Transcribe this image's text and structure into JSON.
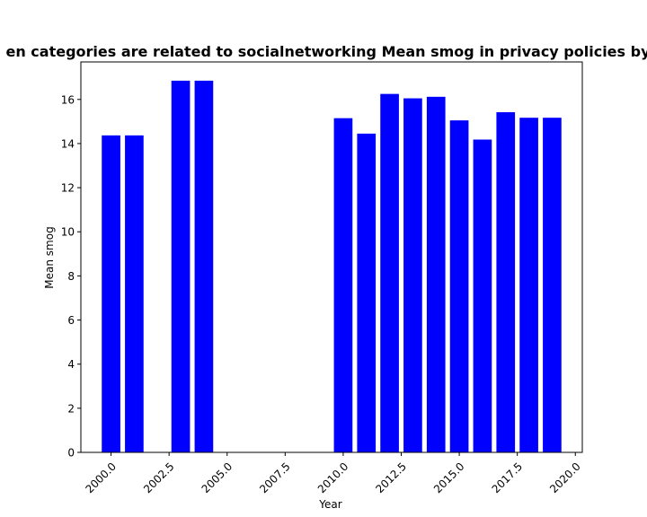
{
  "chart_data": {
    "type": "bar",
    "title": "en categories are related to socialnetworking Mean smog in privacy policies by",
    "xlabel": "Year",
    "ylabel": "Mean smog",
    "bar_color": "#0000ff",
    "xlim": [
      1998.7,
      2020.3
    ],
    "ylim": [
      0,
      17.7
    ],
    "xticks": [
      2000.0,
      2002.5,
      2005.0,
      2007.5,
      2010.0,
      2012.5,
      2015.0,
      2017.5,
      2020.0
    ],
    "xtick_labels": [
      "2000.0",
      "2002.5",
      "2005.0",
      "2007.5",
      "2010.0",
      "2012.5",
      "2015.0",
      "2017.5",
      "2020.0"
    ],
    "yticks": [
      0,
      2,
      4,
      6,
      8,
      10,
      12,
      14,
      16
    ],
    "ytick_labels": [
      "0",
      "2",
      "4",
      "6",
      "8",
      "10",
      "12",
      "14",
      "16"
    ],
    "x": [
      2000,
      2001,
      2003,
      2004,
      2010,
      2011,
      2012,
      2013,
      2014,
      2015,
      2016,
      2017,
      2018,
      2019
    ],
    "values": [
      14.37,
      14.37,
      16.85,
      16.85,
      15.15,
      14.45,
      16.25,
      16.05,
      16.12,
      15.05,
      14.18,
      15.42,
      15.17,
      15.17
    ],
    "bar_width": 0.8,
    "grid": false,
    "legend": false
  }
}
